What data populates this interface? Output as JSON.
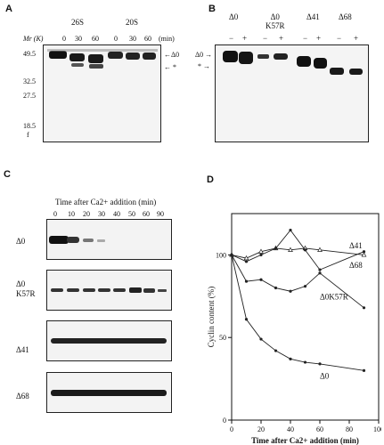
{
  "panels": {
    "A": {
      "letter": "A",
      "group_26S": "26S",
      "group_20S": "20S",
      "mr_label": "Mr (K)",
      "min_unit": "(min)",
      "lane_times": [
        "0",
        "30",
        "60",
        "0",
        "30",
        "60"
      ],
      "ladder": [
        "49.5",
        "32.5",
        "27.5",
        "18.5",
        "f"
      ],
      "arrow_delta0": "←Δ0",
      "arrow_star": "← *"
    },
    "B": {
      "letter": "B",
      "groups": [
        "Δ0",
        "Δ0\nK57R",
        "Δ41",
        "Δ68"
      ],
      "signs": [
        "−",
        "+",
        "−",
        "+",
        "−",
        "+",
        "−",
        "+"
      ],
      "marker_delta0": "Δ0 →",
      "marker_star": "* →"
    },
    "C": {
      "letter": "C",
      "title": "Time after Ca2+ addition (min)",
      "times": [
        "0",
        "10",
        "20",
        "30",
        "40",
        "50",
        "60",
        "90"
      ],
      "strips": [
        "Δ0",
        "Δ0\nK57R",
        "Δ41",
        "Δ68"
      ]
    },
    "D": {
      "letter": "D",
      "ylabel": "Cyclin content (%)",
      "xlabel": "Time after Ca2+ addition (min)"
    }
  },
  "chart_data": {
    "type": "line",
    "xlabel": "Time after Ca2+ addition (min)",
    "ylabel": "Cyclin content (%)",
    "xlim": [
      0,
      100
    ],
    "ylim": [
      0,
      125
    ],
    "xticks": [
      0,
      20,
      40,
      60,
      80,
      100
    ],
    "yticks": [
      0,
      50,
      100
    ],
    "series": [
      {
        "name": "Δ41",
        "x": [
          0,
          10,
          20,
          30,
          40,
          50,
          60,
          90
        ],
        "y": [
          100,
          98,
          102,
          104,
          103,
          104,
          103,
          100
        ]
      },
      {
        "name": "Δ68",
        "x": [
          0,
          10,
          20,
          30,
          40,
          50,
          60,
          90
        ],
        "y": [
          100,
          96,
          100,
          104,
          115,
          103,
          91,
          102
        ]
      },
      {
        "name": "Δ0K57R",
        "x": [
          0,
          10,
          20,
          30,
          40,
          50,
          60,
          90
        ],
        "y": [
          100,
          84,
          85,
          80,
          78,
          81,
          89,
          68
        ]
      },
      {
        "name": "Δ0",
        "x": [
          0,
          10,
          20,
          30,
          40,
          50,
          60,
          90
        ],
        "y": [
          100,
          61,
          49,
          42,
          37,
          35,
          34,
          30
        ]
      }
    ]
  }
}
